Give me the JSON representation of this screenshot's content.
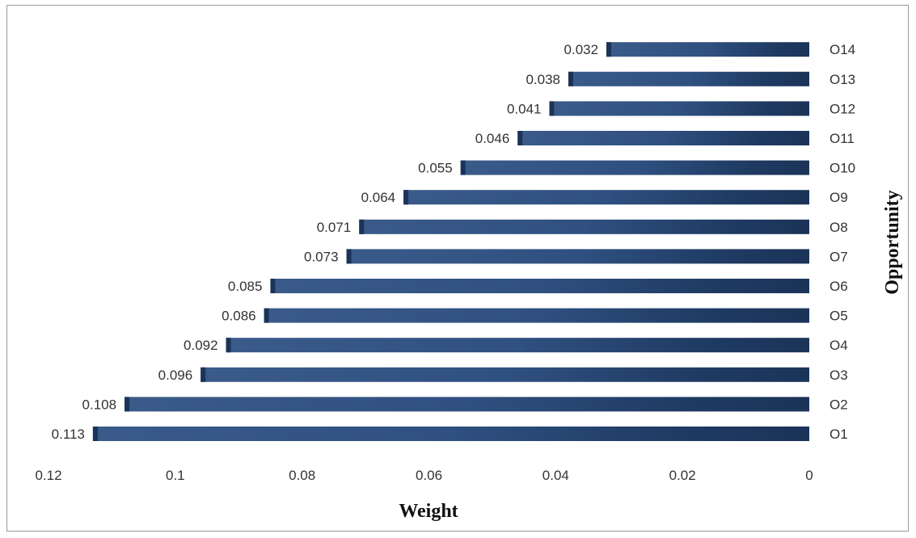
{
  "chart_data": {
    "type": "bar",
    "orientation": "horizontal",
    "x_reversed": true,
    "categories": [
      "O1",
      "O2",
      "O3",
      "O4",
      "O5",
      "O6",
      "O7",
      "O8",
      "O9",
      "O10",
      "O11",
      "O12",
      "O13",
      "O14"
    ],
    "values": [
      0.113,
      0.108,
      0.096,
      0.092,
      0.086,
      0.085,
      0.073,
      0.071,
      0.064,
      0.055,
      0.046,
      0.041,
      0.038,
      0.032
    ],
    "value_labels": [
      "0.113",
      "0.108",
      "0.096",
      "0.092",
      "0.086",
      "0.085",
      "0.073",
      "0.071",
      "0.064",
      "0.055",
      "0.046",
      "0.041",
      "0.038",
      "0.032"
    ],
    "xlabel": "Weight",
    "ylabel": "Opportunity",
    "xlim": [
      0,
      0.12
    ],
    "x_ticks": [
      0.12,
      0.1,
      0.08,
      0.06,
      0.04,
      0.02,
      0
    ],
    "x_tick_labels": [
      "0.12",
      "0.1",
      "0.08",
      "0.06",
      "0.04",
      "0.02",
      "0"
    ],
    "grid": false,
    "bar_color": "#2b4a75",
    "bar_color_dark": "#1b3358"
  }
}
